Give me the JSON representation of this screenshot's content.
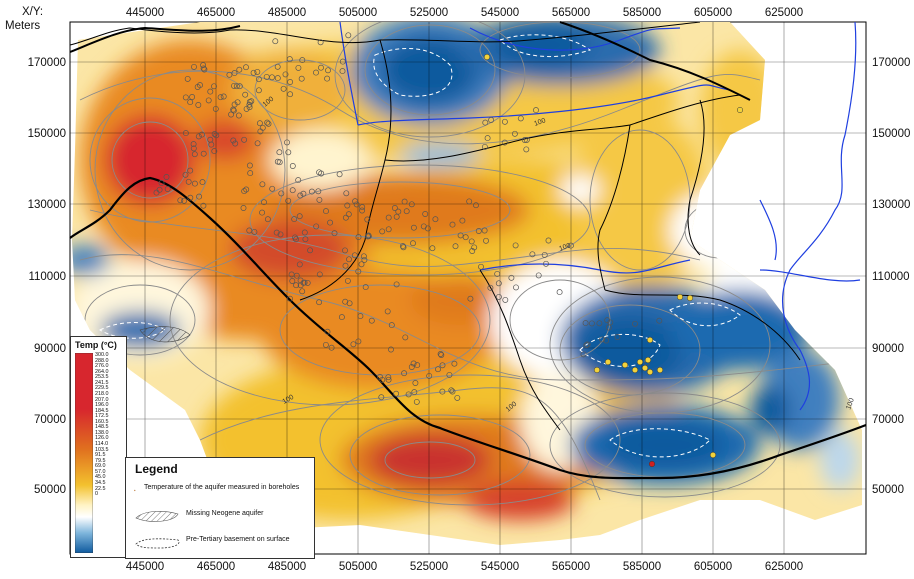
{
  "axis": {
    "title": "X/Y:\nMeters",
    "title_line1": "X/Y:",
    "title_line2": "Meters",
    "x_ticks": [
      "445000",
      "465000",
      "485000",
      "505000",
      "525000",
      "545000",
      "565000",
      "585000",
      "605000",
      "625000"
    ],
    "y_ticks": [
      "170000",
      "150000",
      "130000",
      "110000",
      "90000",
      "70000",
      "50000"
    ]
  },
  "scale": {
    "title": "Temp (°C)",
    "values": [
      "300.0",
      "288.0",
      "276.0",
      "264.0",
      "253.5",
      "241.5",
      "229.5",
      "218.0",
      "207.0",
      "196.0",
      "184.5",
      "172.5",
      "160.5",
      "148.5",
      "138.0",
      "126.0",
      "114.0",
      "103.5",
      "91.5",
      "79.5",
      "69.0",
      "57.0",
      "45.0",
      "34.5",
      "22.5",
      "0"
    ],
    "colors": {
      "hot": "#d7262e",
      "warm": "#e0701f",
      "mid": "#f3c12e",
      "cool": "#fff3c4",
      "neutral": "#ffffff",
      "cold": "#7fb6dc",
      "coldest": "#0f5a9e"
    }
  },
  "legend": {
    "title": "Legend",
    "items": [
      {
        "label": "Temperature of the aquifer measured in boreholes",
        "icon": "orange-dot-icon"
      },
      {
        "label": "Missing Neogene aquifer",
        "icon": "hatch-icon"
      },
      {
        "label": "Pre-Tertiary basement on surface",
        "icon": "dashed-outline-icon"
      }
    ]
  },
  "contour_labels": [
    "100",
    "100",
    "100",
    "100",
    "100",
    "100"
  ],
  "colors": {
    "river": "#1f3fe0",
    "border": "#000000",
    "contour": "#8a8a8a",
    "borehole": "#f2d23c",
    "borehole_red": "#d02020"
  }
}
